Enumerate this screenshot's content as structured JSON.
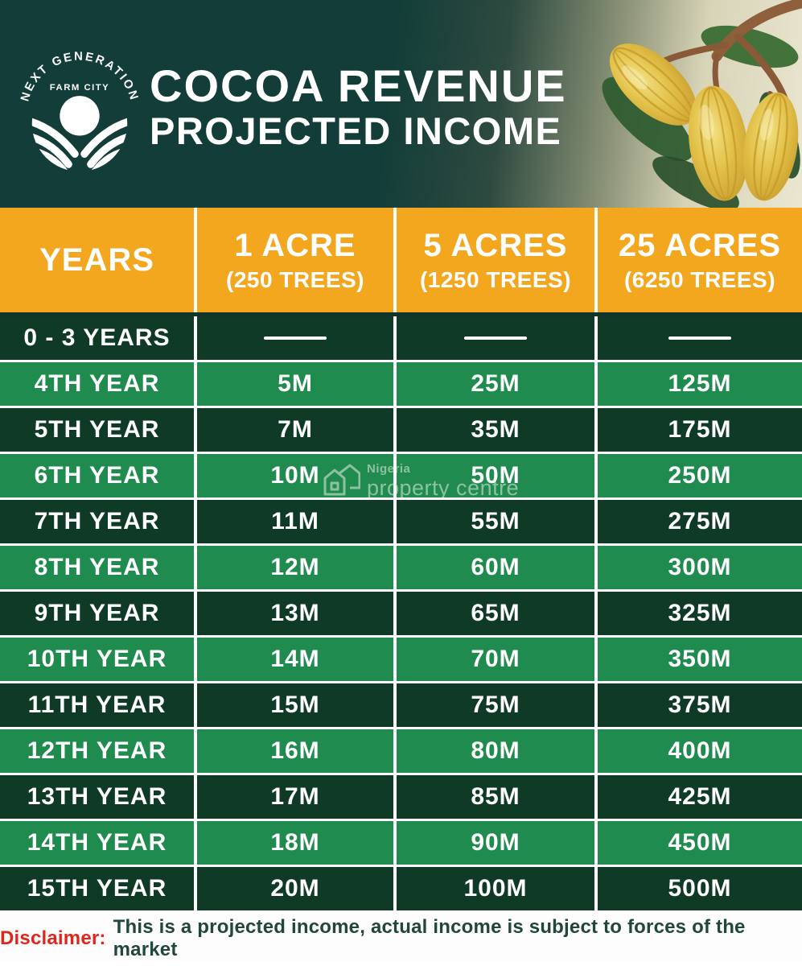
{
  "banner": {
    "logo": {
      "arc_text": "NEXT GENERATION",
      "sub_text": "FARM CITY"
    },
    "title_line1": "COCOA REVENUE",
    "title_line2": "PROJECTED INCOME"
  },
  "table": {
    "columns": [
      {
        "label": "YEARS",
        "sub": ""
      },
      {
        "label": "1 ACRE",
        "sub": "(250 TREES)"
      },
      {
        "label": "5 ACRES",
        "sub": "(1250 TREES)"
      },
      {
        "label": "25 ACRES",
        "sub": "(6250 TREES)"
      }
    ]
  },
  "chart_data": {
    "type": "table",
    "title": "COCOA REVENUE PROJECTED INCOME",
    "columns": [
      "YEARS",
      "1 ACRE (250 TREES)",
      "5 ACRES (1250 TREES)",
      "25 ACRES (6250 TREES)"
    ],
    "rows": [
      [
        "0 - 3 YEARS",
        "—",
        "—",
        "—"
      ],
      [
        "4TH YEAR",
        "5M",
        "25M",
        "125M"
      ],
      [
        "5TH YEAR",
        "7M",
        "35M",
        "175M"
      ],
      [
        "6TH YEAR",
        "10M",
        "50M",
        "250M"
      ],
      [
        "7TH YEAR",
        "11M",
        "55M",
        "275M"
      ],
      [
        "8TH YEAR",
        "12M",
        "60M",
        "300M"
      ],
      [
        "9TH YEAR",
        "13M",
        "65M",
        "325M"
      ],
      [
        "10TH YEAR",
        "14M",
        "70M",
        "350M"
      ],
      [
        "11TH YEAR",
        "15M",
        "75M",
        "375M"
      ],
      [
        "12TH YEAR",
        "16M",
        "80M",
        "400M"
      ],
      [
        "13TH YEAR",
        "17M",
        "85M",
        "425M"
      ],
      [
        "14TH YEAR",
        "18M",
        "90M",
        "450M"
      ],
      [
        "15TH YEAR",
        "20M",
        "100M",
        "500M"
      ]
    ]
  },
  "watermark": {
    "line1": "Nigeria",
    "line2": "property centre"
  },
  "footer": {
    "disclaimer_label": "Disclaimer:",
    "disclaimer_text": "This is a projected income, actual income is subject to forces of the market"
  },
  "colors": {
    "banner_teal": "#123D38",
    "header_orange": "#F2A71F",
    "row_dark": "#0E3A26",
    "row_light": "#1F8B4E",
    "disclaimer_red": "#E0261C"
  }
}
